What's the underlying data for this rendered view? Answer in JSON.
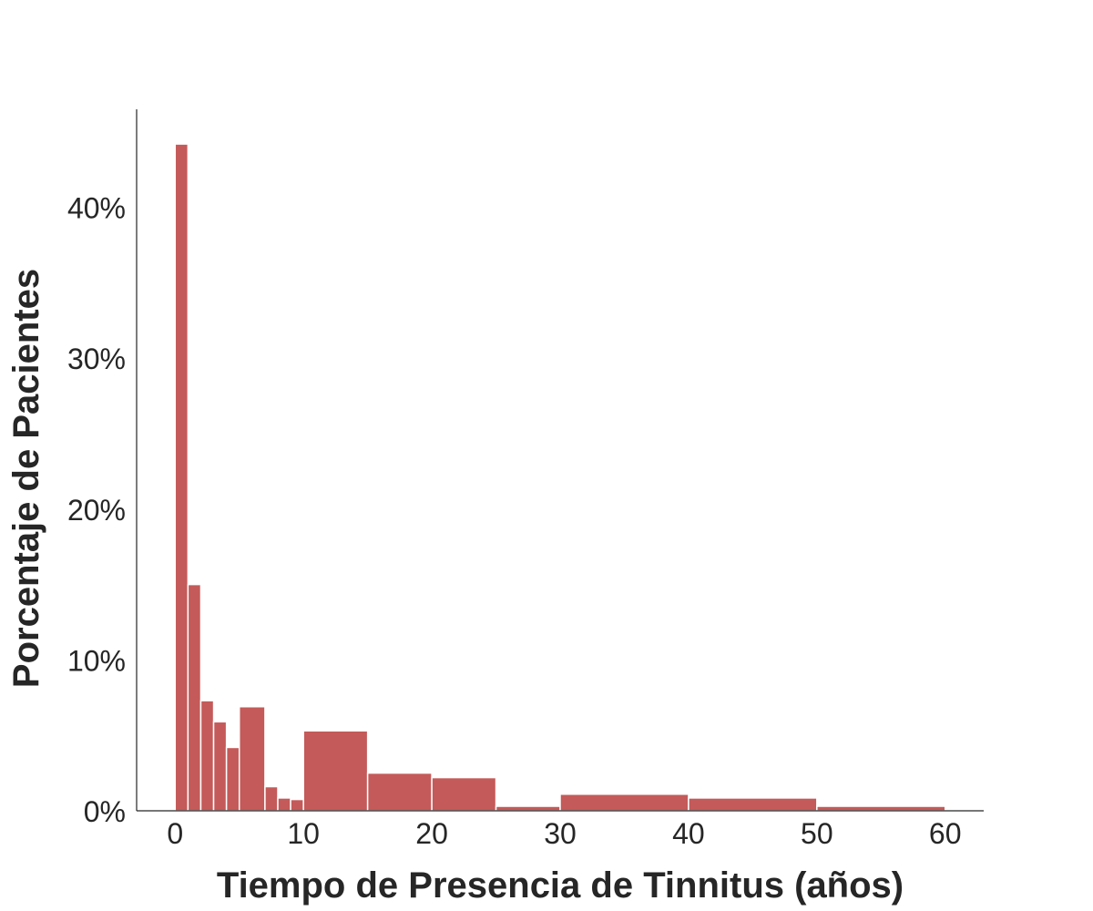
{
  "chart_data": {
    "type": "bar",
    "xlabel": "Tiempo de Presencia de Tinnitus (años)",
    "ylabel": "Porcentaje de Pacientes",
    "xlim": [
      -3,
      63
    ],
    "ylim": [
      0,
      46.5
    ],
    "x_ticks": [
      0,
      10,
      20,
      30,
      40,
      50,
      60
    ],
    "y_ticks": [
      0,
      10,
      20,
      30,
      40
    ],
    "y_tick_labels": [
      "0%",
      "10%",
      "20%",
      "30%",
      "40%"
    ],
    "grid": false,
    "bar_color": "#c45a59",
    "bins": [
      {
        "start": 0,
        "end": 1,
        "value": 44.2
      },
      {
        "start": 1,
        "end": 2,
        "value": 15.0
      },
      {
        "start": 2,
        "end": 3,
        "value": 7.3
      },
      {
        "start": 3,
        "end": 4,
        "value": 5.9
      },
      {
        "start": 4,
        "end": 5,
        "value": 4.2
      },
      {
        "start": 5,
        "end": 7,
        "value": 6.9
      },
      {
        "start": 7,
        "end": 8,
        "value": 1.6
      },
      {
        "start": 8,
        "end": 9,
        "value": 0.85
      },
      {
        "start": 9,
        "end": 10,
        "value": 0.75
      },
      {
        "start": 10,
        "end": 15,
        "value": 5.3
      },
      {
        "start": 15,
        "end": 20,
        "value": 2.5
      },
      {
        "start": 20,
        "end": 25,
        "value": 2.2
      },
      {
        "start": 25,
        "end": 30,
        "value": 0.3
      },
      {
        "start": 30,
        "end": 40,
        "value": 1.1
      },
      {
        "start": 40,
        "end": 50,
        "value": 0.85
      },
      {
        "start": 50,
        "end": 60,
        "value": 0.3
      }
    ]
  }
}
